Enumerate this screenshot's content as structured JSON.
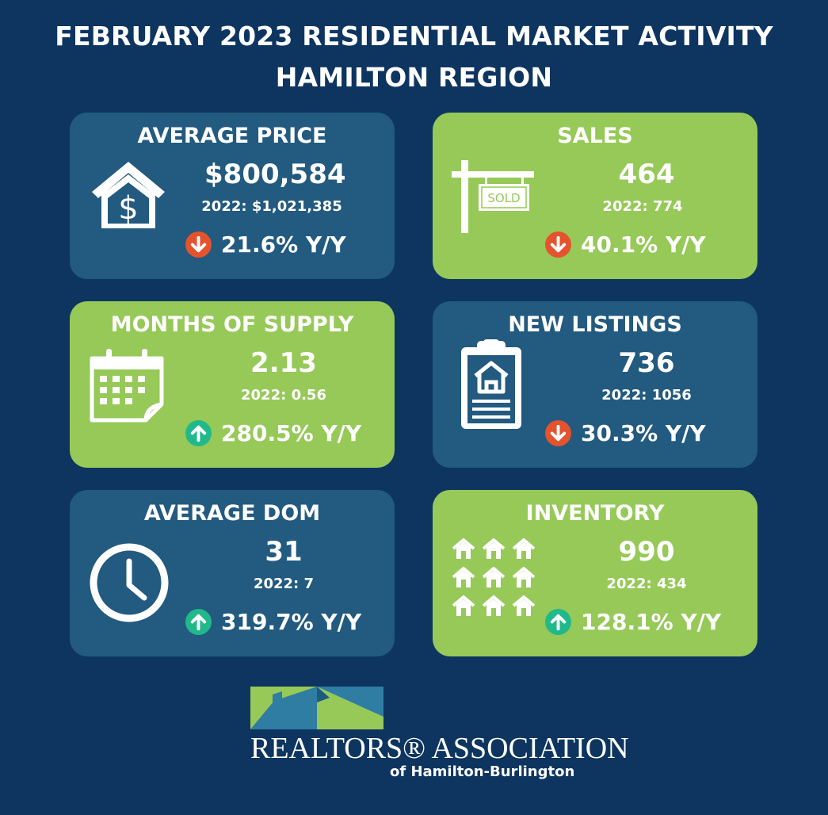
{
  "header": {
    "line1": "FEBRUARY 2023 RESIDENTIAL MARKET ACTIVITY",
    "line2": "HAMILTON REGION"
  },
  "colors": {
    "background": "#0d3560",
    "card_blue": "#225a80",
    "card_green": "#96c958",
    "arrow_down": "#e4532d",
    "arrow_up": "#21b98a"
  },
  "cards": [
    {
      "title": "AVERAGE PRICE",
      "value": "$800,584",
      "previous": "2022: $1,021,385",
      "change": "21.6% Y/Y",
      "direction": "down",
      "icon": "house-dollar-icon"
    },
    {
      "title": "SALES",
      "value": "464",
      "previous": "2022: 774",
      "change": "40.1% Y/Y",
      "direction": "down",
      "icon": "sold-sign-icon",
      "sign_text": "SOLD"
    },
    {
      "title": "MONTHS OF SUPPLY",
      "value": "2.13",
      "previous": "2022: 0.56",
      "change": "280.5% Y/Y",
      "direction": "up",
      "icon": "calendar-icon"
    },
    {
      "title": "NEW LISTINGS",
      "value": "736",
      "previous": "2022: 1056",
      "change": "30.3% Y/Y",
      "direction": "down",
      "icon": "clipboard-house-icon"
    },
    {
      "title": "AVERAGE DOM",
      "value": "31",
      "previous": "2022: 7",
      "change": "319.7% Y/Y",
      "direction": "up",
      "icon": "clock-icon"
    },
    {
      "title": "INVENTORY",
      "value": "990",
      "previous": "2022: 434",
      "change": "128.1% Y/Y",
      "direction": "up",
      "icon": "houses-grid-icon"
    }
  ],
  "logo": {
    "name": "REALTORS® ASSOCIATION",
    "subtitle": "of Hamilton-Burlington"
  }
}
